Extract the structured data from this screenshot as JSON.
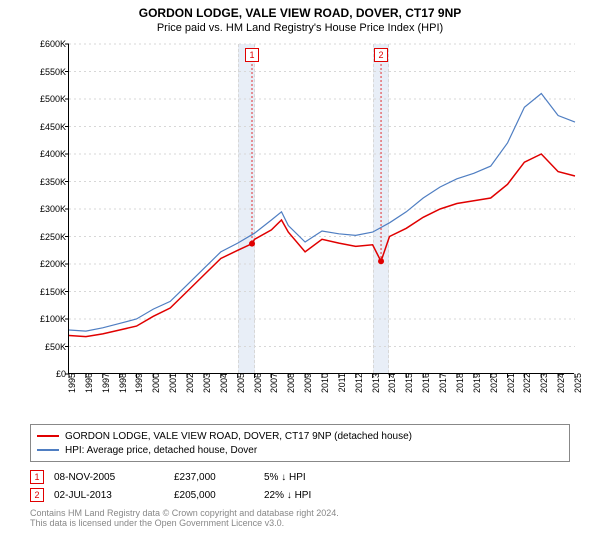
{
  "title": "GORDON LODGE, VALE VIEW ROAD, DOVER, CT17 9NP",
  "subtitle": "Price paid vs. HM Land Registry's House Price Index (HPI)",
  "chart": {
    "type": "line",
    "background_color": "#ffffff",
    "grid_color": "#d7d7d7",
    "band_color": "#e8eef7",
    "axis_color": "#000000",
    "xlim": [
      1995,
      2025
    ],
    "ylim": [
      0,
      600000
    ],
    "ytick_step": 50000,
    "ytick_labels": [
      "£0",
      "£50K",
      "£100K",
      "£150K",
      "£200K",
      "£250K",
      "£300K",
      "£350K",
      "£400K",
      "£450K",
      "£500K",
      "£550K",
      "£600K"
    ],
    "xtick_step": 1,
    "xtick_labels": [
      "1995",
      "1996",
      "1997",
      "1998",
      "1999",
      "2000",
      "2001",
      "2002",
      "2003",
      "2004",
      "2005",
      "2006",
      "2007",
      "2008",
      "2009",
      "2010",
      "2011",
      "2012",
      "2013",
      "2014",
      "2015",
      "2016",
      "2017",
      "2018",
      "2019",
      "2020",
      "2021",
      "2022",
      "2023",
      "2024",
      "2025"
    ],
    "series": [
      {
        "name": "subject",
        "label": "GORDON LODGE, VALE VIEW ROAD, DOVER, CT17 9NP (detached house)",
        "color": "#e00000",
        "line_width": 1.5,
        "data": [
          [
            1995,
            70000
          ],
          [
            1996,
            68000
          ],
          [
            1997,
            73000
          ],
          [
            1998,
            80000
          ],
          [
            1999,
            87000
          ],
          [
            2000,
            105000
          ],
          [
            2001,
            120000
          ],
          [
            2002,
            150000
          ],
          [
            2003,
            180000
          ],
          [
            2004,
            210000
          ],
          [
            2005,
            225000
          ],
          [
            2005.85,
            237000
          ],
          [
            2006,
            245000
          ],
          [
            2007,
            262000
          ],
          [
            2007.6,
            280000
          ],
          [
            2008,
            258000
          ],
          [
            2009,
            222000
          ],
          [
            2010,
            245000
          ],
          [
            2011,
            238000
          ],
          [
            2012,
            232000
          ],
          [
            2013,
            235000
          ],
          [
            2013.5,
            205000
          ],
          [
            2014,
            250000
          ],
          [
            2015,
            265000
          ],
          [
            2016,
            285000
          ],
          [
            2017,
            300000
          ],
          [
            2018,
            310000
          ],
          [
            2019,
            315000
          ],
          [
            2020,
            320000
          ],
          [
            2021,
            345000
          ],
          [
            2022,
            385000
          ],
          [
            2023,
            400000
          ],
          [
            2024,
            368000
          ],
          [
            2025,
            360000
          ]
        ]
      },
      {
        "name": "hpi",
        "label": "HPI: Average price, detached house, Dover",
        "color": "#4f7ec2",
        "line_width": 1.2,
        "data": [
          [
            1995,
            80000
          ],
          [
            1996,
            78000
          ],
          [
            1997,
            84000
          ],
          [
            1998,
            92000
          ],
          [
            1999,
            100000
          ],
          [
            2000,
            118000
          ],
          [
            2001,
            132000
          ],
          [
            2002,
            162000
          ],
          [
            2003,
            192000
          ],
          [
            2004,
            222000
          ],
          [
            2005,
            238000
          ],
          [
            2006,
            256000
          ],
          [
            2007,
            280000
          ],
          [
            2007.6,
            295000
          ],
          [
            2008,
            270000
          ],
          [
            2009,
            240000
          ],
          [
            2010,
            260000
          ],
          [
            2011,
            255000
          ],
          [
            2012,
            252000
          ],
          [
            2013,
            258000
          ],
          [
            2014,
            275000
          ],
          [
            2015,
            295000
          ],
          [
            2016,
            320000
          ],
          [
            2017,
            340000
          ],
          [
            2018,
            355000
          ],
          [
            2019,
            365000
          ],
          [
            2020,
            378000
          ],
          [
            2021,
            420000
          ],
          [
            2022,
            485000
          ],
          [
            2023,
            510000
          ],
          [
            2024,
            470000
          ],
          [
            2025,
            458000
          ]
        ]
      }
    ],
    "markers": [
      {
        "id": "1",
        "x": 2005.85,
        "y": 237000,
        "marker_color": "#e00000"
      },
      {
        "id": "2",
        "x": 2013.5,
        "y": 205000,
        "marker_color": "#e00000"
      }
    ]
  },
  "legend": {
    "items": [
      {
        "swatch_color": "#e00000",
        "label": "GORDON LODGE, VALE VIEW ROAD, DOVER, CT17 9NP (detached house)"
      },
      {
        "swatch_color": "#4f7ec2",
        "label": "HPI: Average price, detached house, Dover"
      }
    ]
  },
  "sales": [
    {
      "id": "1",
      "date": "08-NOV-2005",
      "price": "£237,000",
      "delta": "5%  ↓  HPI"
    },
    {
      "id": "2",
      "date": "02-JUL-2013",
      "price": "£205,000",
      "delta": "22%  ↓  HPI"
    }
  ],
  "footer": {
    "line1": "Contains HM Land Registry data © Crown copyright and database right 2024.",
    "line2": "This data is licensed under the Open Government Licence v3.0."
  }
}
